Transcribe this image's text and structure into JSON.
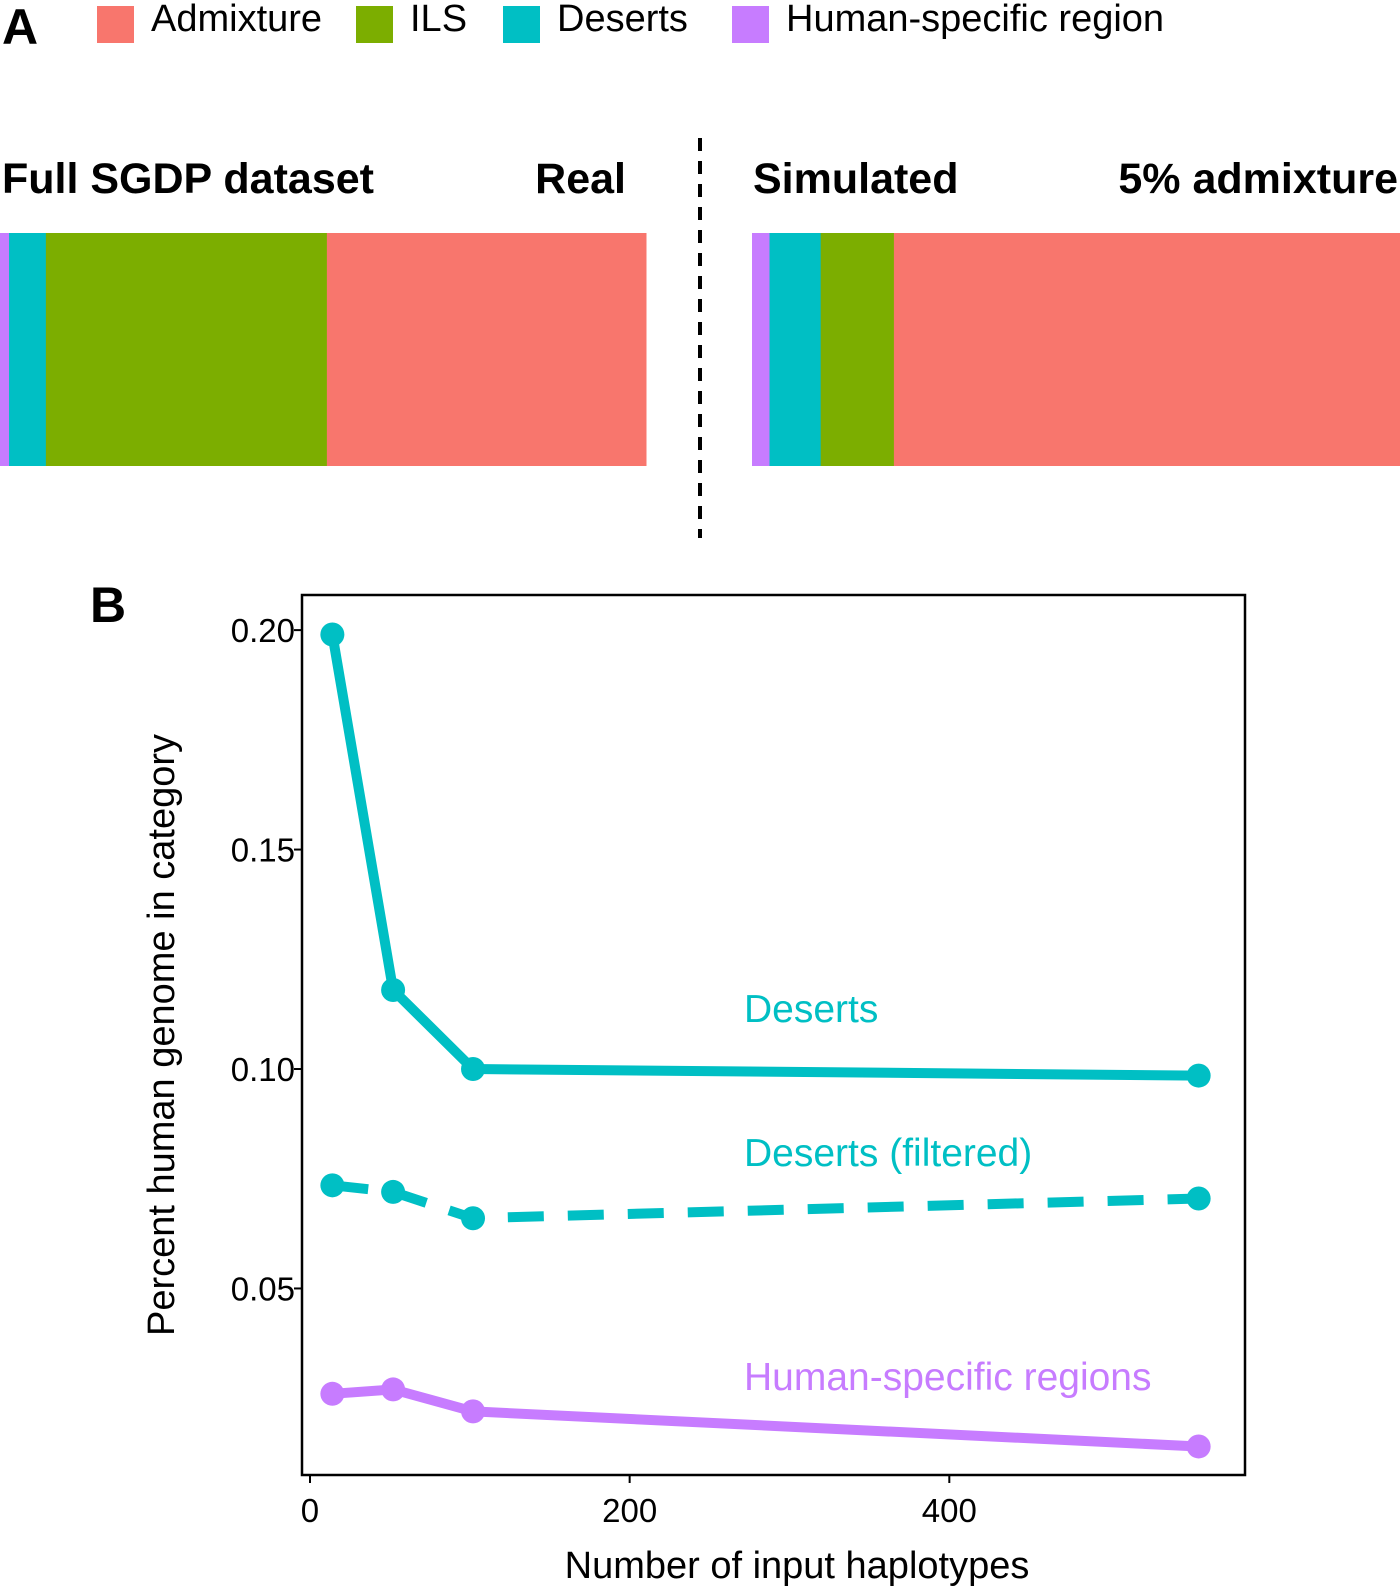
{
  "panel_a_label": "A",
  "panel_b_label": "B",
  "colors": {
    "admixture": "#F8766D",
    "ils": "#7CAE00",
    "deserts": "#00BFC4",
    "human_specific": "#C77CFF"
  },
  "chart_data": [
    {
      "type": "bar",
      "orientation": "horizontal-stacked",
      "legend": {
        "placement": "top-left",
        "items": [
          {
            "label": "Admixture",
            "color": "#F8766D"
          },
          {
            "label": "ILS",
            "color": "#7CAE00"
          },
          {
            "label": "Deserts",
            "color": "#00BFC4"
          },
          {
            "label": "Human-specific region",
            "color": "#C77CFF"
          }
        ]
      },
      "bars": [
        {
          "title": "Full SGDP dataset",
          "tag": "Real",
          "segments": [
            {
              "category": "Human-specific region",
              "fraction": 0.014,
              "color": "#C77CFF"
            },
            {
              "category": "Deserts",
              "fraction": 0.057,
              "color": "#00BFC4"
            },
            {
              "category": "ILS",
              "fraction": 0.435,
              "color": "#7CAE00"
            },
            {
              "category": "Admixture",
              "fraction": 0.494,
              "color": "#F8766D"
            }
          ]
        },
        {
          "title": "Simulated",
          "tag": "5% admixture",
          "segments": [
            {
              "category": "Human-specific region",
              "fraction": 0.027,
              "color": "#C77CFF"
            },
            {
              "category": "Deserts",
              "fraction": 0.079,
              "color": "#00BFC4"
            },
            {
              "category": "ILS",
              "fraction": 0.113,
              "color": "#7CAE00"
            },
            {
              "category": "Admixture",
              "fraction": 0.781,
              "color": "#F8766D"
            }
          ]
        }
      ]
    },
    {
      "type": "line",
      "xlabel": "Number of input haplotypes",
      "ylabel": "Percent human genome in category",
      "xlim": [
        -5,
        585
      ],
      "ylim": [
        0.0075,
        0.208
      ],
      "xticks": [
        0,
        200,
        400
      ],
      "yticks": [
        0.05,
        0.1,
        0.15,
        0.2
      ],
      "xtick_labels": [
        "0",
        "200",
        "400"
      ],
      "ytick_labels": [
        "0.05",
        "0.10",
        "0.15",
        "0.20"
      ],
      "grid": false,
      "series": [
        {
          "name": "Deserts",
          "color": "#00BFC4",
          "dashed": false,
          "x": [
            14,
            52,
            102,
            556
          ],
          "y": [
            0.199,
            0.118,
            0.1,
            0.0985
          ]
        },
        {
          "name": "Deserts (filtered)",
          "color": "#00BFC4",
          "dashed": true,
          "x": [
            14,
            52,
            102,
            556
          ],
          "y": [
            0.0735,
            0.072,
            0.066,
            0.0705
          ]
        },
        {
          "name": "Human-specific regions",
          "color": "#C77CFF",
          "dashed": false,
          "x": [
            14,
            52,
            102,
            556
          ],
          "y": [
            0.026,
            0.027,
            0.022,
            0.014
          ]
        }
      ]
    }
  ]
}
